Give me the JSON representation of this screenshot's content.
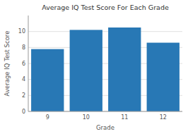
{
  "chart_data": {
    "type": "bar",
    "title": "Average IQ Test Score For Each Grade",
    "xlabel": "Grade",
    "ylabel": "Average IQ Test Score",
    "categories": [
      "9",
      "10",
      "11",
      "12"
    ],
    "values": [
      7.8,
      10.2,
      10.5,
      8.6
    ],
    "color": "#2878b5",
    "ylim": [
      0,
      12
    ],
    "yticks": [
      0,
      2,
      4,
      6,
      8,
      10
    ],
    "grid": true
  }
}
